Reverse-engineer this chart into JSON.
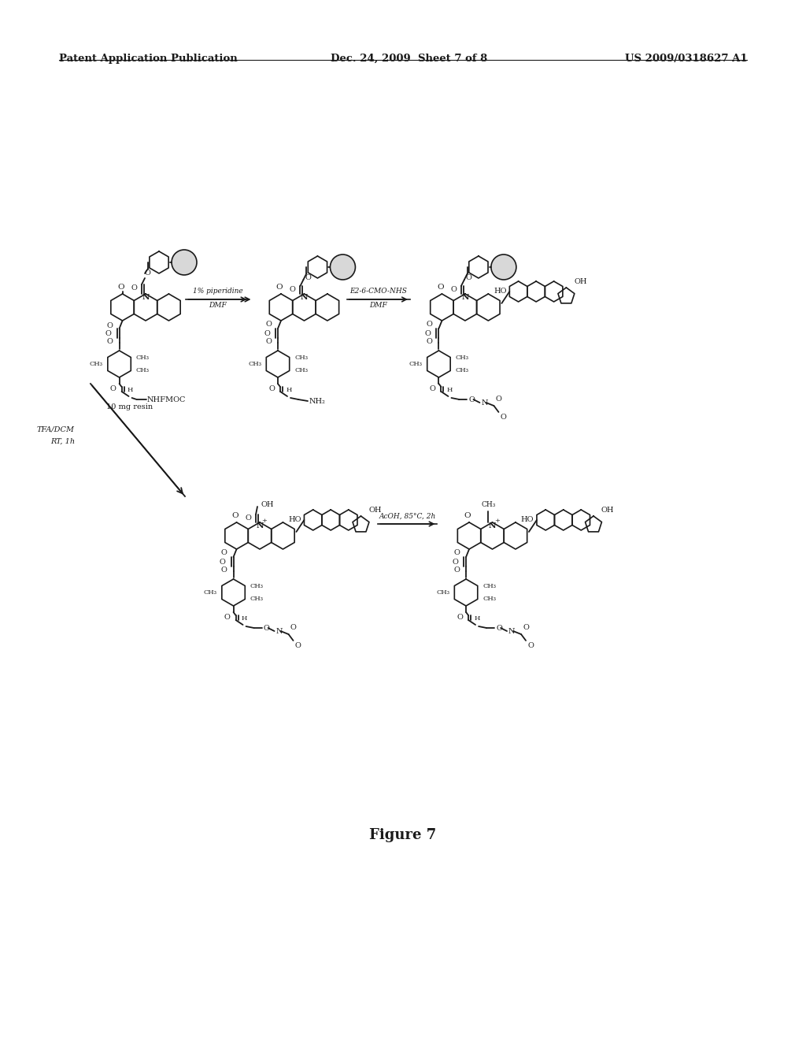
{
  "title": "Figure 7",
  "header_left": "Patent Application Publication",
  "header_center": "Dec. 24, 2009  Sheet 7 of 8",
  "header_right": "US 2009/0318627 A1",
  "background_color": "#ffffff",
  "text_color": "#000000",
  "header_fontsize": 9.5,
  "title_fontsize": 13,
  "figure_size": [
    10.24,
    13.2
  ],
  "dpi": 100
}
